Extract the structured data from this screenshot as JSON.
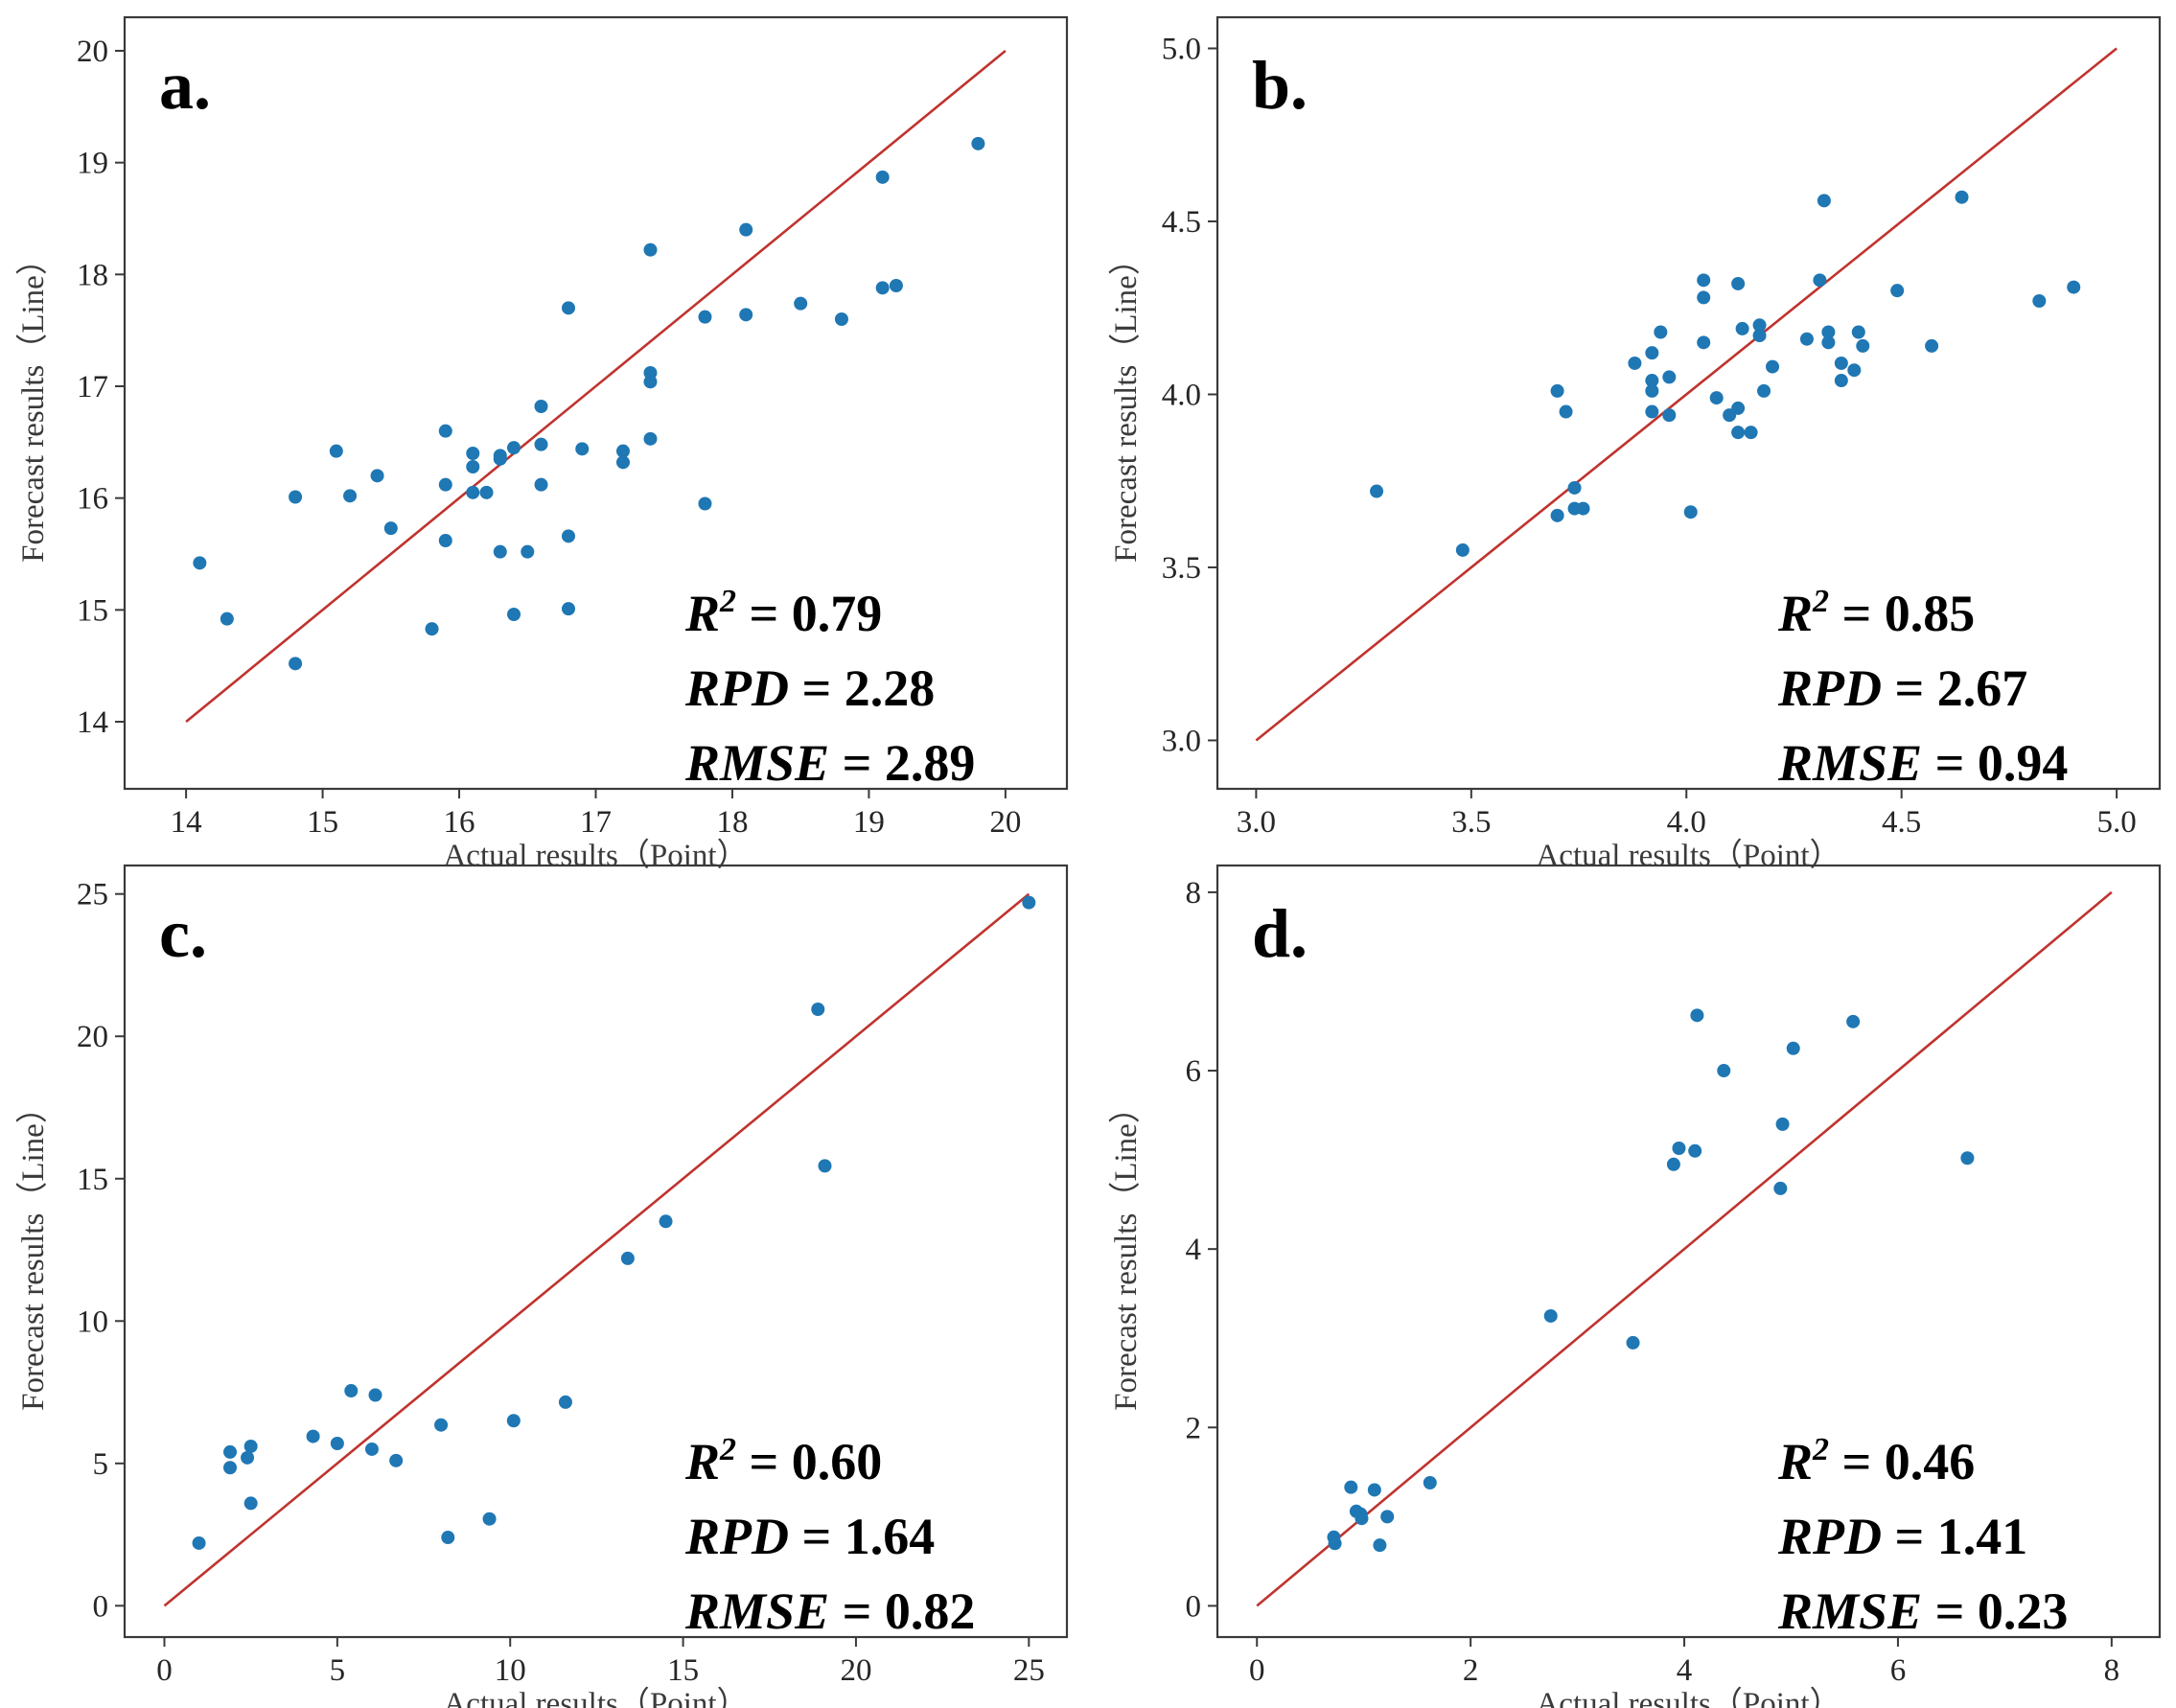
{
  "chart_data": [
    {
      "type": "scatter",
      "panel_label": "a.",
      "xlabel": "Actual results（Point）",
      "ylabel": "Forecast results（Line）",
      "xlim": [
        13.55,
        20.45
      ],
      "ylim": [
        13.4,
        20.3
      ],
      "xticks": [
        14,
        15,
        16,
        17,
        18,
        19,
        20
      ],
      "yticks": [
        14,
        15,
        16,
        17,
        18,
        19,
        20
      ],
      "x_tick_labels": [
        "14",
        "15",
        "16",
        "17",
        "18",
        "19",
        "20"
      ],
      "y_tick_labels": [
        "14",
        "15",
        "16",
        "17",
        "18",
        "19",
        "20"
      ],
      "line": {
        "from": [
          14,
          14
        ],
        "to": [
          20,
          20
        ],
        "color": "#c0332e"
      },
      "stats": [
        {
          "name": "R",
          "sup": "2",
          "value": "= 0.79"
        },
        {
          "name": "RPD",
          "value": "= 2.28"
        },
        {
          "name": "RMSE",
          "value": "= 2.89"
        }
      ],
      "points": [
        [
          14.1,
          15.42
        ],
        [
          14.3,
          14.92
        ],
        [
          14.8,
          14.52
        ],
        [
          14.8,
          16.01
        ],
        [
          15.1,
          16.42
        ],
        [
          15.2,
          16.02
        ],
        [
          15.4,
          16.2
        ],
        [
          15.5,
          15.73
        ],
        [
          15.8,
          14.83
        ],
        [
          15.9,
          16.6
        ],
        [
          15.9,
          16.12
        ],
        [
          15.9,
          15.62
        ],
        [
          16.1,
          16.4
        ],
        [
          16.1,
          16.28
        ],
        [
          16.1,
          16.05
        ],
        [
          16.2,
          16.05
        ],
        [
          16.3,
          16.38
        ],
        [
          16.3,
          16.35
        ],
        [
          16.3,
          15.52
        ],
        [
          16.4,
          16.45
        ],
        [
          16.4,
          14.96
        ],
        [
          16.5,
          15.52
        ],
        [
          16.6,
          16.82
        ],
        [
          16.6,
          16.48
        ],
        [
          16.6,
          16.12
        ],
        [
          16.8,
          17.7
        ],
        [
          16.8,
          15.66
        ],
        [
          16.8,
          15.01
        ],
        [
          16.9,
          16.44
        ],
        [
          17.2,
          16.42
        ],
        [
          17.2,
          16.32
        ],
        [
          17.4,
          18.22
        ],
        [
          17.4,
          17.12
        ],
        [
          17.4,
          17.04
        ],
        [
          17.4,
          16.53
        ],
        [
          17.8,
          17.62
        ],
        [
          17.8,
          15.95
        ],
        [
          18.1,
          18.4
        ],
        [
          18.1,
          17.64
        ],
        [
          18.5,
          17.74
        ],
        [
          18.8,
          17.6
        ],
        [
          19.1,
          18.87
        ],
        [
          19.1,
          17.88
        ],
        [
          19.2,
          17.9
        ],
        [
          19.8,
          19.17
        ]
      ]
    },
    {
      "type": "scatter",
      "panel_label": "b.",
      "xlabel": "Actual results（Point）",
      "ylabel": "Forecast results（Line）",
      "xlim": [
        2.91,
        5.1
      ],
      "ylim": [
        2.86,
        5.09
      ],
      "xticks": [
        3.0,
        3.5,
        4.0,
        4.5,
        5.0
      ],
      "yticks": [
        3.0,
        3.5,
        4.0,
        4.5,
        5.0
      ],
      "x_tick_labels": [
        "3.0",
        "3.5",
        "4.0",
        "4.5",
        "5.0"
      ],
      "y_tick_labels": [
        "3.0",
        "3.5",
        "4.0",
        "4.5",
        "5.0"
      ],
      "line": {
        "from": [
          3.0,
          3.0
        ],
        "to": [
          5.0,
          5.0
        ],
        "color": "#c0332e"
      },
      "stats": [
        {
          "name": "R",
          "sup": "2",
          "value": "= 0.85"
        },
        {
          "name": "RPD",
          "value": "= 2.67"
        },
        {
          "name": "RMSE",
          "value": "= 0.94"
        }
      ],
      "points": [
        [
          3.28,
          3.72
        ],
        [
          3.48,
          3.55
        ],
        [
          3.7,
          4.01
        ],
        [
          3.7,
          3.65
        ],
        [
          3.72,
          3.95
        ],
        [
          3.74,
          3.73
        ],
        [
          3.74,
          3.67
        ],
        [
          3.76,
          3.67
        ],
        [
          3.88,
          4.09
        ],
        [
          3.92,
          4.12
        ],
        [
          3.92,
          4.04
        ],
        [
          3.92,
          4.01
        ],
        [
          3.92,
          3.95
        ],
        [
          3.94,
          4.18
        ],
        [
          3.96,
          4.05
        ],
        [
          3.96,
          3.94
        ],
        [
          4.01,
          3.66
        ],
        [
          4.04,
          4.33
        ],
        [
          4.04,
          4.28
        ],
        [
          4.04,
          4.15
        ],
        [
          4.07,
          3.99
        ],
        [
          4.1,
          3.94
        ],
        [
          4.12,
          4.32
        ],
        [
          4.12,
          3.96
        ],
        [
          4.12,
          3.89
        ],
        [
          4.13,
          4.19
        ],
        [
          4.15,
          3.89
        ],
        [
          4.17,
          4.2
        ],
        [
          4.17,
          4.17
        ],
        [
          4.18,
          4.01
        ],
        [
          4.2,
          4.08
        ],
        [
          4.28,
          4.16
        ],
        [
          4.31,
          4.33
        ],
        [
          4.32,
          4.56
        ],
        [
          4.33,
          4.18
        ],
        [
          4.33,
          4.15
        ],
        [
          4.36,
          4.09
        ],
        [
          4.36,
          4.04
        ],
        [
          4.39,
          4.07
        ],
        [
          4.4,
          4.18
        ],
        [
          4.41,
          4.14
        ],
        [
          4.49,
          4.3
        ],
        [
          4.57,
          4.14
        ],
        [
          4.64,
          4.57
        ],
        [
          4.82,
          4.27
        ],
        [
          4.9,
          4.31
        ]
      ]
    },
    {
      "type": "scatter",
      "panel_label": "c.",
      "xlabel": "Actual results（Point）",
      "ylabel": "Forecast results（Line）",
      "xlim": [
        -1.15,
        26.1
      ],
      "ylim": [
        -1.1,
        26.0
      ],
      "xticks": [
        0,
        5,
        10,
        15,
        20,
        25
      ],
      "yticks": [
        0,
        5,
        10,
        15,
        20,
        25
      ],
      "x_tick_labels": [
        "0",
        "5",
        "10",
        "15",
        "20",
        "25"
      ],
      "y_tick_labels": [
        "0",
        "5",
        "10",
        "15",
        "20",
        "25"
      ],
      "line": {
        "from": [
          0,
          0
        ],
        "to": [
          25,
          25
        ],
        "color": "#c0332e"
      },
      "stats": [
        {
          "name": "R",
          "sup": "2",
          "value": "= 0.60"
        },
        {
          "name": "RPD",
          "value": "= 1.64"
        },
        {
          "name": "RMSE",
          "value": "= 0.82"
        }
      ],
      "points": [
        [
          1.0,
          2.2
        ],
        [
          1.9,
          5.4
        ],
        [
          1.9,
          4.85
        ],
        [
          2.4,
          5.2
        ],
        [
          2.5,
          5.6
        ],
        [
          2.5,
          3.6
        ],
        [
          4.3,
          5.95
        ],
        [
          5.0,
          5.7
        ],
        [
          5.4,
          7.55
        ],
        [
          6.0,
          5.5
        ],
        [
          6.1,
          7.4
        ],
        [
          6.7,
          5.1
        ],
        [
          8.0,
          6.35
        ],
        [
          8.2,
          2.4
        ],
        [
          9.4,
          3.05
        ],
        [
          10.1,
          6.5
        ],
        [
          11.6,
          7.15
        ],
        [
          13.4,
          12.2
        ],
        [
          14.5,
          13.5
        ],
        [
          18.9,
          20.95
        ],
        [
          19.1,
          15.45
        ],
        [
          25.0,
          24.7
        ]
      ]
    },
    {
      "type": "scatter",
      "panel_label": "d.",
      "xlabel": "Actual results（Point）",
      "ylabel": "Forecast results（Line）",
      "xlim": [
        -0.37,
        8.45
      ],
      "ylim": [
        -0.35,
        8.3
      ],
      "xticks": [
        0,
        2,
        4,
        6,
        8
      ],
      "yticks": [
        0,
        2,
        4,
        6,
        8
      ],
      "x_tick_labels": [
        "0",
        "2",
        "4",
        "6",
        "8"
      ],
      "y_tick_labels": [
        "0",
        "2",
        "4",
        "6",
        "8"
      ],
      "line": {
        "from": [
          0,
          0
        ],
        "to": [
          8,
          8
        ],
        "color": "#c0332e"
      },
      "stats": [
        {
          "name": "R",
          "sup": "2",
          "value": "= 0.46"
        },
        {
          "name": "RPD",
          "value": "= 1.41"
        },
        {
          "name": "RMSE",
          "value": "= 0.23"
        }
      ],
      "points": [
        [
          0.72,
          0.77
        ],
        [
          0.73,
          0.7
        ],
        [
          0.88,
          1.33
        ],
        [
          0.93,
          1.06
        ],
        [
          0.97,
          1.03
        ],
        [
          0.98,
          0.98
        ],
        [
          1.1,
          1.3
        ],
        [
          1.15,
          0.68
        ],
        [
          1.22,
          1.0
        ],
        [
          1.62,
          1.38
        ],
        [
          2.75,
          3.25
        ],
        [
          3.52,
          2.95
        ],
        [
          3.9,
          4.95
        ],
        [
          3.95,
          5.13
        ],
        [
          4.1,
          5.1
        ],
        [
          4.12,
          6.62
        ],
        [
          4.37,
          6.0
        ],
        [
          4.9,
          4.68
        ],
        [
          4.92,
          5.4
        ],
        [
          5.02,
          6.25
        ],
        [
          5.58,
          6.55
        ],
        [
          6.65,
          5.02
        ]
      ]
    }
  ]
}
